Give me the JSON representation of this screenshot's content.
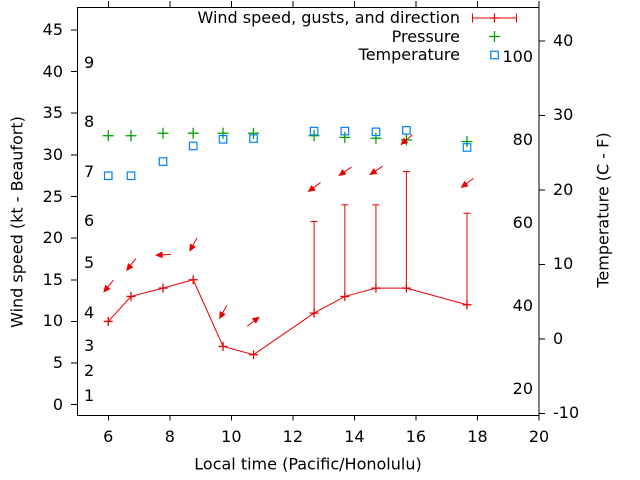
{
  "chart_data": {
    "type": "line",
    "xlabel": "Local time (Pacific/Honolulu)",
    "ylabel_left": "Wind speed (kt - Beaufort)",
    "ylabel_right": "Temperature (C - F)",
    "colors": {
      "wind": "#e60000",
      "pressure": "#00a000",
      "temperature": "#0080ff",
      "axis": "#000000"
    },
    "legend": [
      {
        "label": "Wind speed, gusts, and direction",
        "marker": "errorbar-plus",
        "color": "#e60000"
      },
      {
        "label": "Pressure",
        "marker": "plus",
        "color": "#00a000"
      },
      {
        "label": "Temperature",
        "marker": "open-square",
        "color": "#0080ff"
      }
    ],
    "x_axis": {
      "range": [
        5,
        20
      ],
      "ticks": [
        6,
        8,
        10,
        12,
        14,
        16,
        18,
        20
      ]
    },
    "y_left_axis": {
      "units": "kt",
      "range": [
        -1.3,
        47.7
      ],
      "ticks_kt": [
        0,
        5,
        10,
        15,
        20,
        25,
        30,
        35,
        40,
        45
      ],
      "beaufort_labels": [
        {
          "label": "1",
          "kt": 1
        },
        {
          "label": "2",
          "kt": 4
        },
        {
          "label": "3",
          "kt": 7
        },
        {
          "label": "4",
          "kt": 11
        },
        {
          "label": "5",
          "kt": 17
        },
        {
          "label": "6",
          "kt": 22
        },
        {
          "label": "7",
          "kt": 28
        },
        {
          "label": "8",
          "kt": 34
        },
        {
          "label": "9",
          "kt": 41
        }
      ]
    },
    "y_right_axis": {
      "units": "C",
      "range": [
        -10.3,
        44.5
      ],
      "ticks_c": [
        -10,
        0,
        10,
        20,
        30,
        40
      ],
      "fahrenheit_labels": [
        {
          "label": "20",
          "c": -6.7
        },
        {
          "label": "40",
          "c": 4.4
        },
        {
          "label": "60",
          "c": 15.6
        },
        {
          "label": "80",
          "c": 26.7
        },
        {
          "label": "100",
          "c": 37.8
        }
      ]
    },
    "wind": {
      "points": [
        {
          "t": 6.0,
          "speed_kt": 10,
          "gust_kt": null,
          "dir_deg": 129,
          "arrow_y_kt": 14.2
        },
        {
          "t": 6.74,
          "speed_kt": 13,
          "gust_kt": null,
          "dir_deg": 128,
          "arrow_y_kt": 16.8
        },
        {
          "t": 7.78,
          "speed_kt": 14,
          "gust_kt": null,
          "dir_deg": 177,
          "arrow_y_kt": 18.0
        },
        {
          "t": 8.76,
          "speed_kt": 15,
          "gust_kt": null,
          "dir_deg": 119,
          "arrow_y_kt": 19.2
        },
        {
          "t": 9.73,
          "speed_kt": 7,
          "gust_kt": null,
          "dir_deg": 119,
          "arrow_y_kt": 11.1
        },
        {
          "t": 10.72,
          "speed_kt": 6,
          "gust_kt": null,
          "dir_deg": -38,
          "arrow_y_kt": 10.0
        },
        {
          "t": 12.69,
          "speed_kt": 11,
          "gust_kt": 22,
          "dir_deg": 143,
          "arrow_y_kt": 26.1
        },
        {
          "t": 13.69,
          "speed_kt": 13,
          "gust_kt": 24,
          "dir_deg": 146,
          "arrow_y_kt": 28.0
        },
        {
          "t": 14.7,
          "speed_kt": 14,
          "gust_kt": 24,
          "dir_deg": 146,
          "arrow_y_kt": 28.1
        },
        {
          "t": 15.69,
          "speed_kt": 14,
          "gust_kt": 28,
          "dir_deg": 139,
          "arrow_y_kt": 31.8
        },
        {
          "t": 17.66,
          "speed_kt": 12,
          "gust_kt": 23,
          "dir_deg": 143,
          "arrow_y_kt": 26.6
        }
      ]
    },
    "pressure": {
      "t": [
        6.0,
        6.74,
        7.78,
        8.76,
        9.73,
        10.72,
        12.69,
        13.69,
        14.7,
        15.69,
        17.66
      ],
      "y_plot_kt": [
        32.3,
        32.3,
        32.6,
        32.6,
        32.6,
        32.6,
        32.3,
        32.1,
        32.0,
        31.8,
        31.6
      ]
    },
    "temperature": {
      "t": [
        6.0,
        6.74,
        7.78,
        8.76,
        9.73,
        10.72,
        12.69,
        13.69,
        14.7,
        15.69,
        17.66
      ],
      "c": [
        21.9,
        21.9,
        23.8,
        25.9,
        26.8,
        26.9,
        27.9,
        27.9,
        27.8,
        28.0,
        25.7
      ]
    }
  }
}
